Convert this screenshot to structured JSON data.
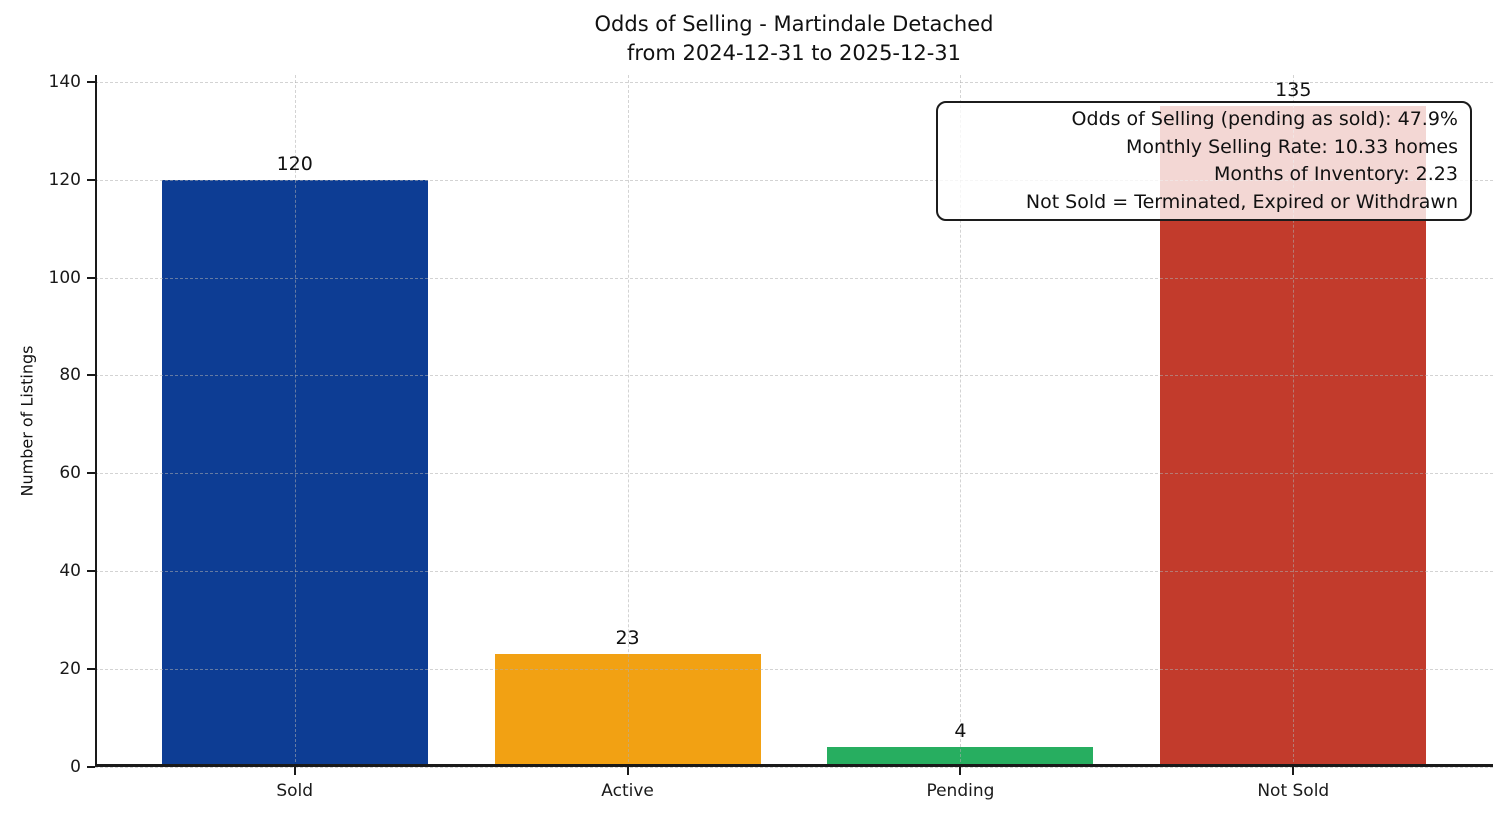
{
  "chart_data": {
    "type": "bar",
    "title": "Odds of Selling - Martindale Detached",
    "subtitle": "from 2024-12-31 to 2025-12-31",
    "categories": [
      "Sold",
      "Active",
      "Pending",
      "Not Sold"
    ],
    "values": [
      120,
      23,
      4,
      135
    ],
    "bar_colors": [
      "#0d3d94",
      "#f2a113",
      "#27ae60",
      "#c23b2c"
    ],
    "xlabel": "",
    "ylabel": "Number of Listings",
    "ylim": [
      0,
      141.4
    ],
    "yticks": [
      0,
      20,
      40,
      60,
      80,
      100,
      120,
      140
    ],
    "grid": {
      "style": "dashed",
      "axes": "both",
      "color": "#c8c8c8"
    },
    "legend": null,
    "annotation": {
      "position": "upper-right",
      "lines": [
        "Odds of Selling (pending as sold): 47.9%",
        "Monthly Selling Rate: 10.33 homes",
        "Months of Inventory: 2.23",
        "Not Sold = Terminated, Expired or Withdrawn"
      ]
    },
    "stats": {
      "odds_of_selling_pct": 47.9,
      "monthly_selling_rate_homes": 10.33,
      "months_of_inventory": 2.23
    }
  }
}
